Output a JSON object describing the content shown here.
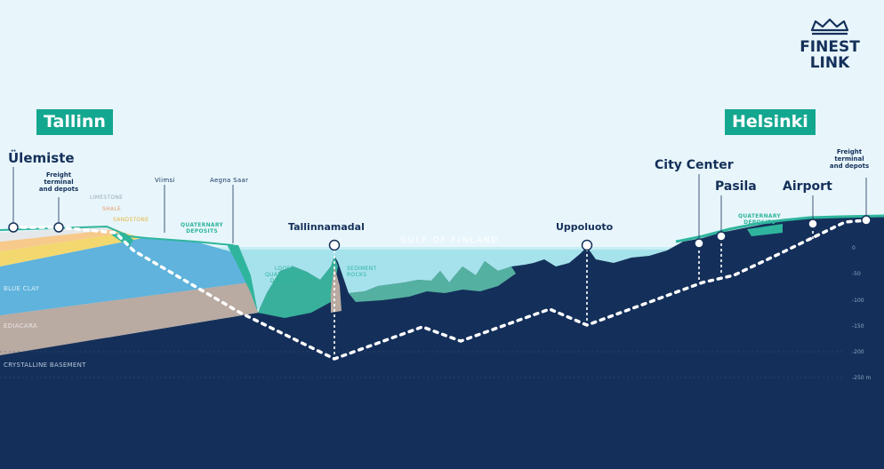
{
  "logo": {
    "line1": "FINEST",
    "line2": "LINK"
  },
  "cities": {
    "tallinn": "Tallinn",
    "helsinki": "Helsinki"
  },
  "stations": {
    "ulemiste": "Ülemiste",
    "tallinnamadal": "Tallinnamadal",
    "uppoluoto": "Uppoluoto",
    "city_center": "City Center",
    "pasila": "Pasila",
    "airport": "Airport"
  },
  "notes": {
    "freight_tallinn": [
      "Freight",
      "terminal",
      "and depots"
    ],
    "freight_helsinki": [
      "Freight",
      "terminal",
      "and depots"
    ],
    "viimsi": "Viimsi",
    "aegna": "Aegna Saar"
  },
  "layers": {
    "limestone": "LIMESTONE",
    "shale": "SHALE",
    "sandstone": "SANDSTONE",
    "quaternary_left": [
      "QUATERNARY",
      "DEPOSITS"
    ],
    "quaternary_right": [
      "QUATERNARY",
      "DEPOSITS"
    ],
    "loose": [
      "LOOSE",
      "QUATERNARY",
      "DEPOSITS"
    ],
    "sediment": [
      "SEDIMENT",
      "ROCKS"
    ],
    "blue_clay": "BLUE CLAY",
    "ediacara": "EDIACARA",
    "basement": "CRYSTALLINE BASEMENT",
    "gulf": "GULF OF FINLAND"
  },
  "depths": [
    "0",
    "-50",
    "-100",
    "-150",
    "-200",
    "-250 m"
  ],
  "colors": {
    "sky": "#e8f6fb",
    "sea": "#a6e2ec",
    "sea_dark": "#7fd3df",
    "bedrock": "#14305a",
    "basement": "#13294a",
    "blue_clay": "#5fb3dc",
    "ediacara": "#b9aaa2",
    "limestone": "#e4e8ea",
    "shale": "#f7c98b",
    "sandstone": "#f3d870",
    "quaternary": "#2fb59d",
    "badge": "#14a790",
    "navy_text": "#14305a"
  }
}
